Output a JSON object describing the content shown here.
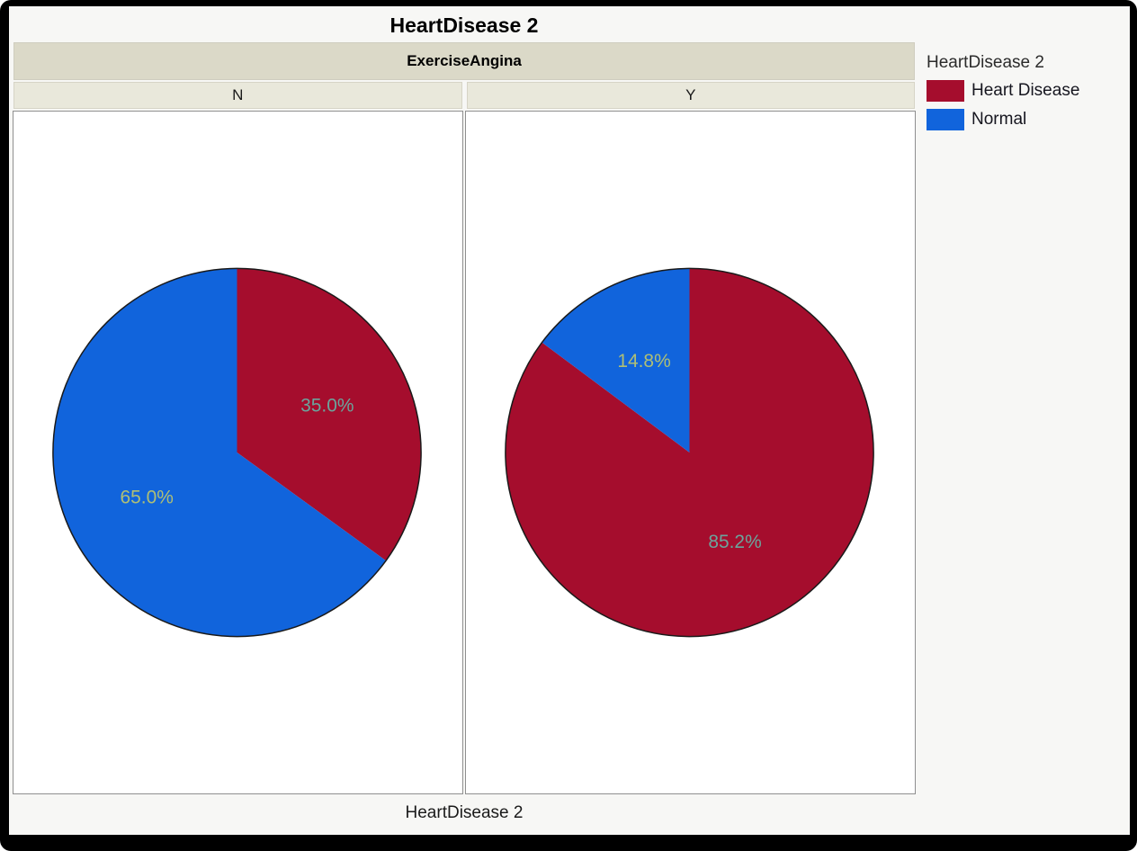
{
  "report_title": "HeartDisease 2",
  "facet_header": {
    "group_label": "ExerciseAngina",
    "columns": [
      "N",
      "Y"
    ]
  },
  "x_axis_label": "HeartDisease 2",
  "legend": {
    "title": "HeartDisease 2",
    "items": [
      {
        "label": "Heart Disease",
        "color": "#A50D2D"
      },
      {
        "label": "Normal",
        "color": "#1164DC"
      }
    ]
  },
  "colors": {
    "heart_disease_red": "#A50D2D",
    "normal_blue": "#1164DC",
    "label_on_red": "#6BA49C",
    "label_on_blue": "#AFBF75",
    "group_header_bg": "#DBD9C8",
    "column_header_bg": "#E9E8DB",
    "frame": "#000000"
  },
  "chart_data": [
    {
      "type": "pie",
      "facet_variable": "ExerciseAngina",
      "facet": "N",
      "title": "HeartDisease 2",
      "categories": [
        "Heart Disease",
        "Normal"
      ],
      "values": [
        35.0,
        65.0
      ],
      "labels": [
        "35.0%",
        "65.0%"
      ],
      "colors": [
        "#A50D2D",
        "#1164DC"
      ],
      "label_colors": [
        "#6BA49C",
        "#AFBF75"
      ],
      "legend_position": "right"
    },
    {
      "type": "pie",
      "facet_variable": "ExerciseAngina",
      "facet": "Y",
      "title": "HeartDisease 2",
      "categories": [
        "Heart Disease",
        "Normal"
      ],
      "values": [
        85.2,
        14.8
      ],
      "labels": [
        "85.2%",
        "14.8%"
      ],
      "colors": [
        "#A50D2D",
        "#1164DC"
      ],
      "label_colors": [
        "#6BA49C",
        "#AFBF75"
      ],
      "legend_position": "right"
    }
  ]
}
